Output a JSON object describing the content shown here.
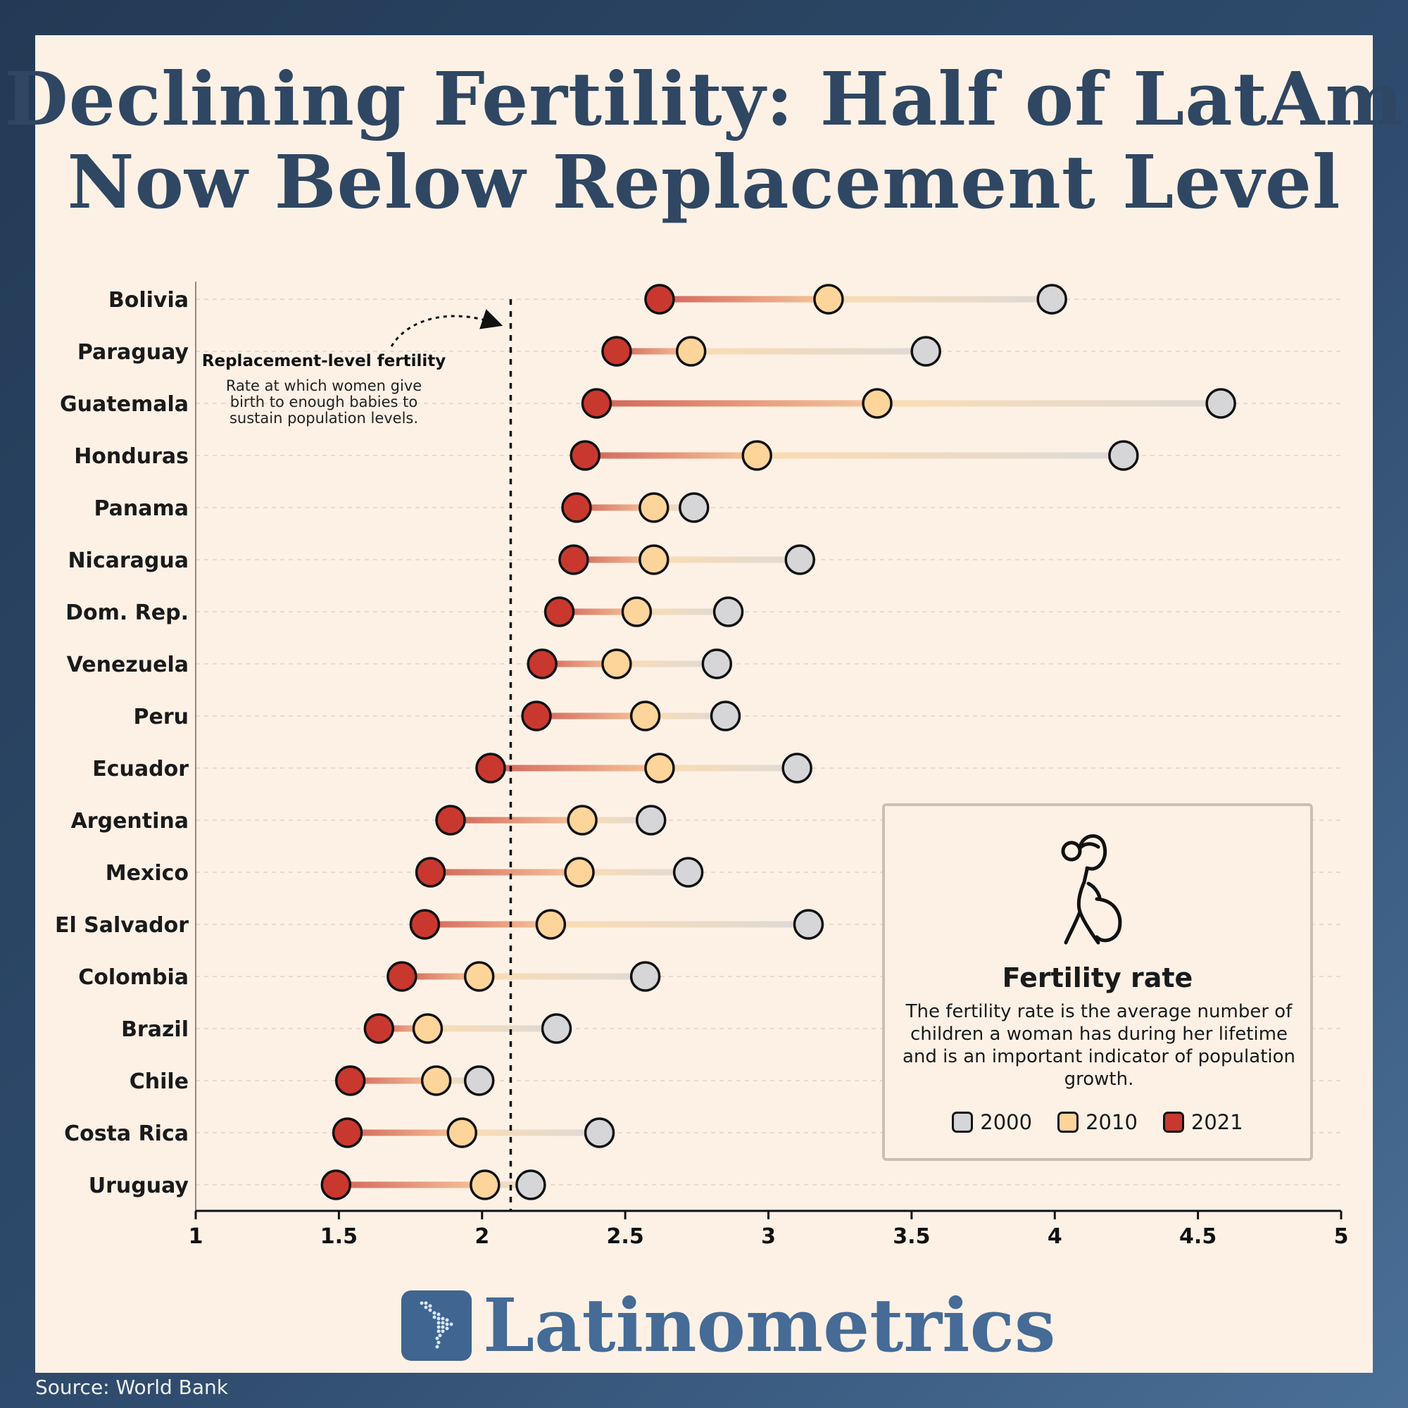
{
  "title_lines": [
    "Declining Fertility: Half of LatAm",
    "Now Below Replacement Level"
  ],
  "chart_data": {
    "type": "dumbbell",
    "xlim": [
      1,
      5
    ],
    "xticks": [
      "1",
      "1.5",
      "2",
      "2.5",
      "3",
      "3.5",
      "4",
      "4.5",
      "5"
    ],
    "series_names": [
      "2000",
      "2010",
      "2021"
    ],
    "series_colors": {
      "2000": "#d6d6d8",
      "2010": "#fdd49a",
      "2021": "#c9382e"
    },
    "replacement_level": 2.1,
    "annotation": {
      "title": "Replacement-level fertility",
      "body": [
        "Rate at which women give",
        "birth to enough babies to",
        "sustain population levels."
      ]
    },
    "countries": [
      {
        "name": "Bolivia",
        "v2000": 3.99,
        "v2010": 3.21,
        "v2021": 2.62
      },
      {
        "name": "Paraguay",
        "v2000": 3.55,
        "v2010": 2.73,
        "v2021": 2.47
      },
      {
        "name": "Guatemala",
        "v2000": 4.58,
        "v2010": 3.38,
        "v2021": 2.4
      },
      {
        "name": "Honduras",
        "v2000": 4.24,
        "v2010": 2.96,
        "v2021": 2.36
      },
      {
        "name": "Panama",
        "v2000": 2.74,
        "v2010": 2.6,
        "v2021": 2.33
      },
      {
        "name": "Nicaragua",
        "v2000": 3.11,
        "v2010": 2.6,
        "v2021": 2.32
      },
      {
        "name": "Dom. Rep.",
        "v2000": 2.86,
        "v2010": 2.54,
        "v2021": 2.27
      },
      {
        "name": "Venezuela",
        "v2000": 2.82,
        "v2010": 2.47,
        "v2021": 2.21
      },
      {
        "name": "Peru",
        "v2000": 2.85,
        "v2010": 2.57,
        "v2021": 2.19
      },
      {
        "name": "Ecuador",
        "v2000": 3.1,
        "v2010": 2.62,
        "v2021": 2.03
      },
      {
        "name": "Argentina",
        "v2000": 2.59,
        "v2010": 2.35,
        "v2021": 1.89
      },
      {
        "name": "Mexico",
        "v2000": 2.72,
        "v2010": 2.34,
        "v2021": 1.82
      },
      {
        "name": "El Salvador",
        "v2000": 3.14,
        "v2010": 2.24,
        "v2021": 1.8
      },
      {
        "name": "Colombia",
        "v2000": 2.57,
        "v2010": 1.99,
        "v2021": 1.72
      },
      {
        "name": "Brazil",
        "v2000": 2.26,
        "v2010": 1.81,
        "v2021": 1.64
      },
      {
        "name": "Chile",
        "v2000": 1.99,
        "v2010": 1.84,
        "v2021": 1.54
      },
      {
        "name": "Costa Rica",
        "v2000": 2.41,
        "v2010": 1.93,
        "v2021": 1.53
      },
      {
        "name": "Uruguay",
        "v2000": 2.17,
        "v2010": 2.01,
        "v2021": 1.49
      }
    ]
  },
  "info_box": {
    "icon": "pregnant-woman-icon",
    "title": "Fertility rate",
    "text": "The fertility rate is the average number of children a woman has during her lifetime and is an important indicator of population growth.",
    "legend": [
      {
        "label": "2000",
        "color": "#d6d6d8"
      },
      {
        "label": "2010",
        "color": "#fdd49a"
      },
      {
        "label": "2021",
        "color": "#c9382e"
      }
    ]
  },
  "brand": {
    "name": "Latinometrics",
    "icon": "latin-america-map-icon"
  },
  "source": "Source: World Bank"
}
